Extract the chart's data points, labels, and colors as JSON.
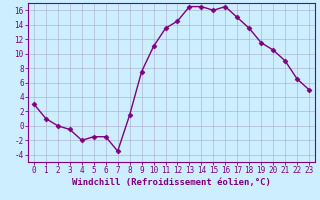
{
  "x": [
    0,
    1,
    2,
    3,
    4,
    5,
    6,
    7,
    8,
    9,
    10,
    11,
    12,
    13,
    14,
    15,
    16,
    17,
    18,
    19,
    20,
    21,
    22,
    23
  ],
  "y": [
    3,
    1,
    0,
    -0.5,
    -2,
    -1.5,
    -1.5,
    -3.5,
    1.5,
    7.5,
    11,
    13.5,
    14.5,
    16.5,
    16.5,
    16,
    16.5,
    15,
    13.5,
    11.5,
    10.5,
    9,
    6.5,
    5
  ],
  "line_color": "#800080",
  "marker": "D",
  "marker_size": 2.5,
  "linewidth": 1.0,
  "xlabel": "Windchill (Refroidissement éolien,°C)",
  "xlabel_fontsize": 6.5,
  "bg_color": "#cceeff",
  "grid_color": "#aaaacc",
  "ylim": [
    -5,
    17
  ],
  "xlim": [
    -0.5,
    23.5
  ],
  "yticks": [
    -4,
    -2,
    0,
    2,
    4,
    6,
    8,
    10,
    12,
    14,
    16
  ],
  "xticks": [
    0,
    1,
    2,
    3,
    4,
    5,
    6,
    7,
    8,
    9,
    10,
    11,
    12,
    13,
    14,
    15,
    16,
    17,
    18,
    19,
    20,
    21,
    22,
    23
  ],
  "tick_fontsize": 5.5,
  "tick_color": "#800080",
  "spine_color": "#800080"
}
